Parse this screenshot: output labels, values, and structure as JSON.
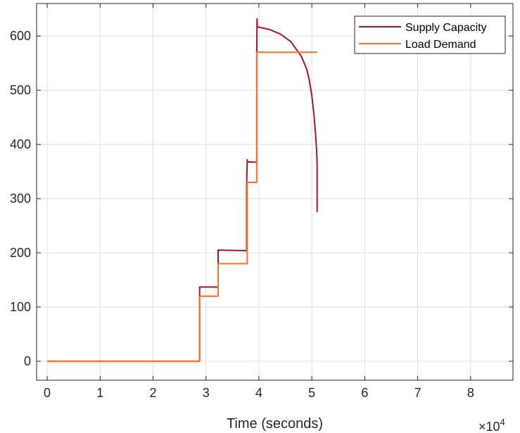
{
  "chart_data": {
    "type": "line",
    "title": "",
    "xlabel": "Time (seconds)",
    "ylabel": "",
    "x_exponent_label": "×10",
    "x_exponent_power": "4",
    "x_scale": 10000,
    "xlim": [
      -0.2,
      8.8
    ],
    "ylim": [
      -35,
      660
    ],
    "xticks": [
      0,
      1,
      2,
      3,
      4,
      5,
      6,
      7,
      8
    ],
    "xtick_labels": [
      "0",
      "1",
      "2",
      "3",
      "4",
      "5",
      "6",
      "7",
      "8"
    ],
    "yticks": [
      0,
      100,
      200,
      300,
      400,
      500,
      600
    ],
    "ytick_labels": [
      "0",
      "100",
      "200",
      "300",
      "400",
      "500",
      "600"
    ],
    "grid": true,
    "legend_position": "top-right",
    "series": [
      {
        "name": "Supply Capacity",
        "color": "#a2142f",
        "x": [
          0,
          2.88,
          2.88,
          3.23,
          3.23,
          3.77,
          3.77,
          3.78,
          3.78,
          3.96,
          3.96,
          3.965,
          3.97,
          4.2,
          4.4,
          4.6,
          4.8,
          4.9,
          4.95,
          5.0,
          5.04,
          5.07,
          5.09,
          5.1,
          5.1
        ],
        "y": [
          0,
          0,
          137,
          137,
          205,
          204,
          330,
          372,
          368,
          367,
          570,
          632,
          617,
          612,
          604,
          590,
          563,
          540,
          520,
          490,
          455,
          420,
          390,
          365,
          275
        ]
      },
      {
        "name": "Load Demand",
        "color": "#ff6f2a",
        "x": [
          0,
          2.88,
          2.88,
          3.23,
          3.23,
          3.78,
          3.78,
          3.96,
          3.96,
          5.1
        ],
        "y": [
          0,
          0,
          120,
          120,
          180,
          180,
          330,
          330,
          570,
          570
        ]
      }
    ]
  }
}
